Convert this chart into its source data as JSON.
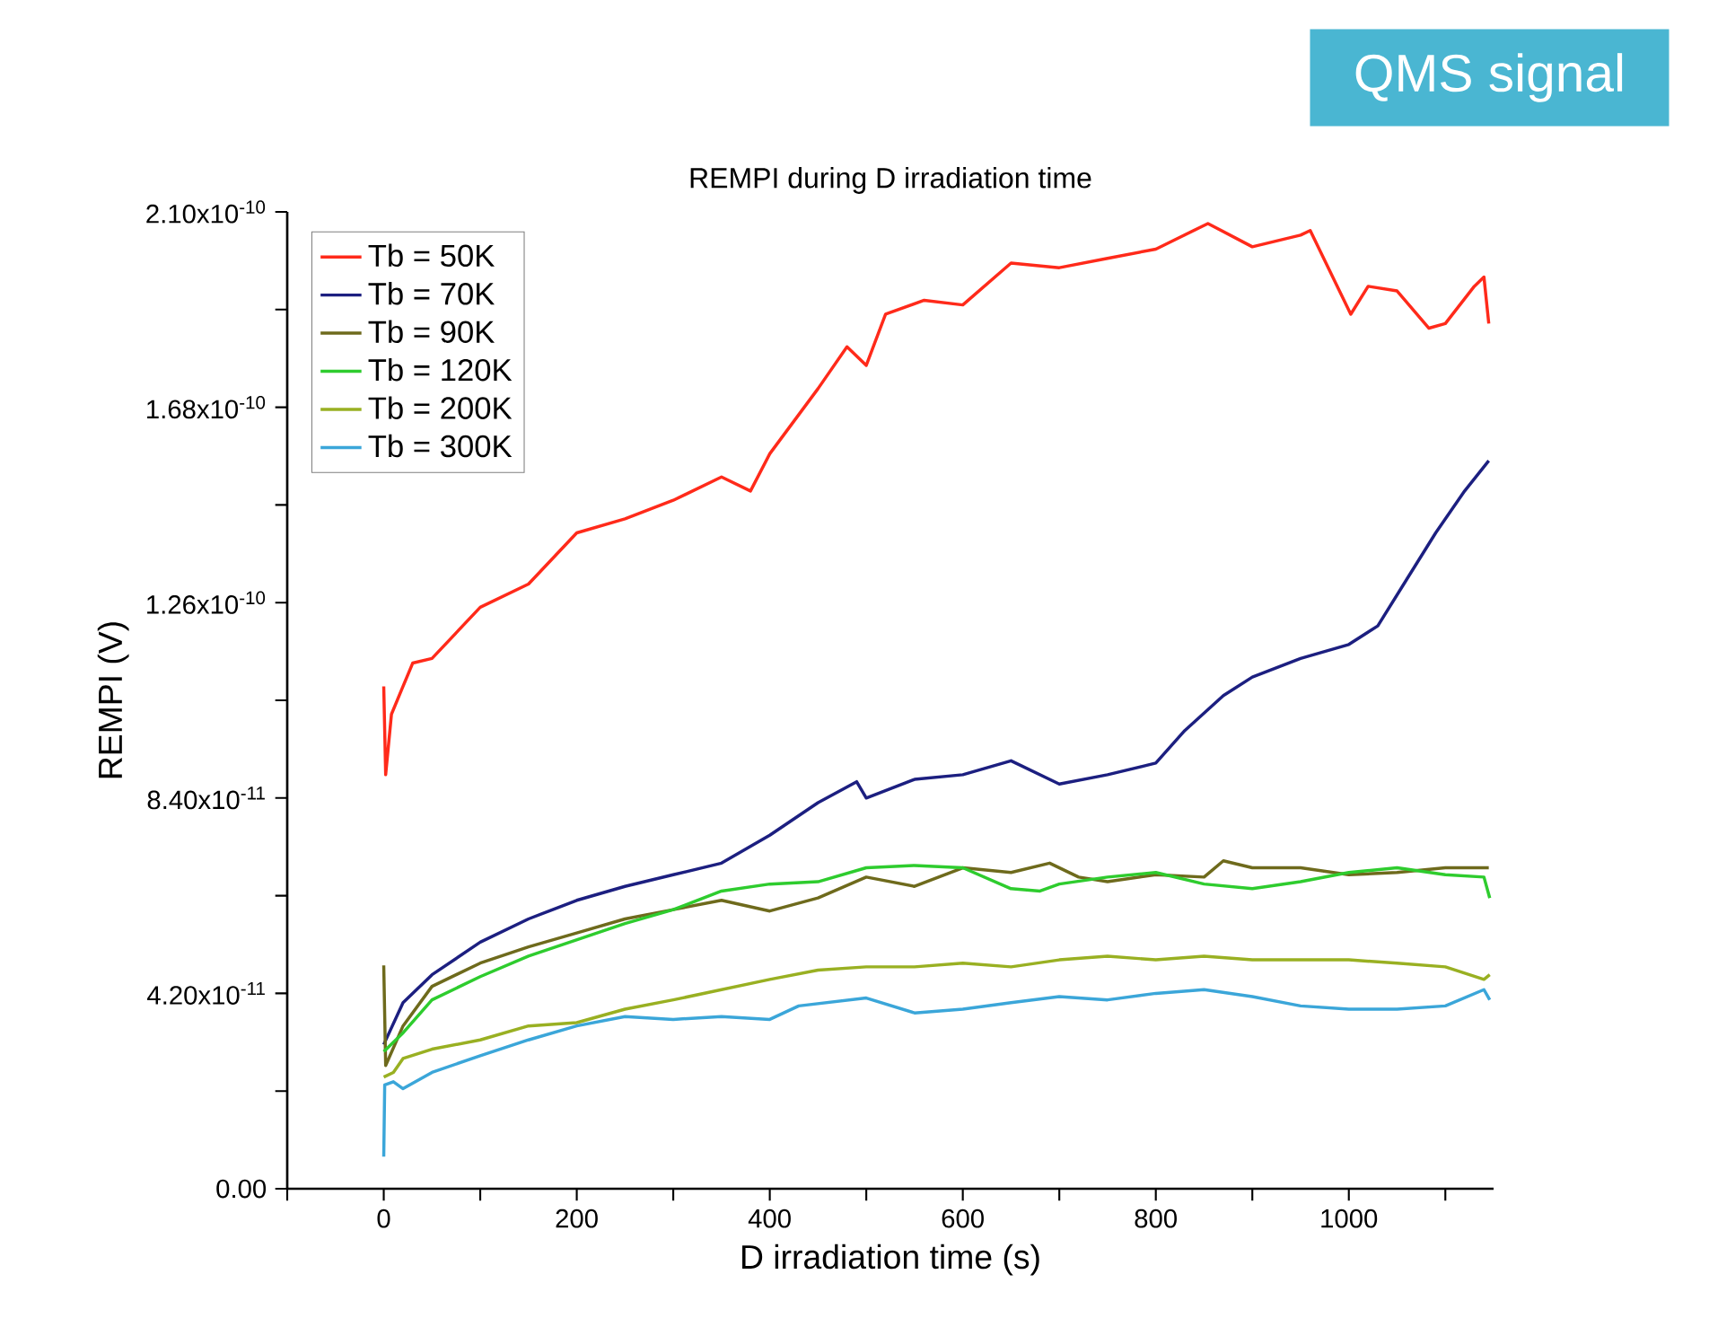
{
  "chart_data": {
    "type": "line",
    "title": "REMPI during D irradiation time",
    "xlabel": "D irradiation time (s)",
    "ylabel": "REMPI (V)",
    "annotations": [
      "QMS signal"
    ],
    "xlim": [
      -100,
      1150
    ],
    "ylim": [
      0,
      2.1e-10
    ],
    "xticks": [
      {
        "value": -100,
        "label": null
      },
      0,
      {
        "value": 100,
        "label": null
      },
      200,
      {
        "value": 300,
        "label": null
      },
      400,
      {
        "value": 500,
        "label": null
      },
      600,
      {
        "value": 700,
        "label": null
      },
      800,
      {
        "value": 900,
        "label": null
      },
      1000,
      {
        "value": 1100,
        "label": null
      }
    ],
    "yticks": [
      {
        "value": 0,
        "label": "0.00"
      },
      {
        "value": 2.1e-11,
        "label": null
      },
      {
        "value": 4.2e-11,
        "label": "4.20x10$^{-11}$"
      },
      {
        "value": 6.3e-11,
        "label": null
      },
      {
        "value": 8.4e-11,
        "label": "8.40x10$^{-11}$"
      },
      {
        "value": 1.05e-10,
        "label": null
      },
      {
        "value": 1.26e-10,
        "label": "1.26x10$^{-10}$"
      },
      {
        "value": 1.47e-10,
        "label": null
      },
      {
        "value": 1.68e-10,
        "label": "1.68x10$^{-10}$"
      },
      {
        "value": 1.89e-10,
        "label": null
      },
      {
        "value": 2.1e-10,
        "label": "2.10x10$^{-10}$"
      }
    ],
    "legend": "top left",
    "series": [
      {
        "name": "Tb = 50K",
        "color": "#ff2a1a",
        "x": [
          0,
          2,
          8,
          20,
          30,
          50,
          100,
          150,
          200,
          250,
          300,
          350,
          380,
          400,
          450,
          480,
          500,
          520,
          560,
          600,
          650,
          700,
          750,
          800,
          854,
          900,
          950,
          960,
          1002,
          1020,
          1050,
          1083,
          1100,
          1130,
          1140,
          1145
        ],
        "values": [
          1.08e-10,
          8.9e-11,
          1.02e-10,
          1.08e-10,
          1.13e-10,
          1.14e-10,
          1.25e-10,
          1.3e-10,
          1.41e-10,
          1.44e-10,
          1.48e-10,
          1.53e-10,
          1.5e-10,
          1.58e-10,
          1.72e-10,
          1.81e-10,
          1.77e-10,
          1.88e-10,
          1.91e-10,
          1.9e-10,
          1.99e-10,
          1.98e-10,
          2e-10,
          2.02e-10,
          2.075e-10,
          2.025e-10,
          2.05e-10,
          2.06e-10,
          1.88e-10,
          1.94e-10,
          1.93e-10,
          1.85e-10,
          1.86e-10,
          1.94e-10,
          1.96e-10,
          1.86e-10
        ]
      },
      {
        "name": "Tb = 70K",
        "color": "#1c1f80",
        "x": [
          0,
          20,
          50,
          100,
          150,
          200,
          250,
          300,
          350,
          400,
          450,
          490,
          500,
          550,
          600,
          650,
          700,
          750,
          800,
          830,
          870,
          900,
          950,
          1000,
          1030,
          1060,
          1090,
          1120,
          1145
        ],
        "values": [
          3.1e-11,
          4e-11,
          4.6e-11,
          5.3e-11,
          5.8e-11,
          6.2e-11,
          6.5e-11,
          6.75e-11,
          7e-11,
          7.6e-11,
          8.3e-11,
          8.75e-11,
          8.4e-11,
          8.8e-11,
          8.9e-11,
          9.2e-11,
          8.7e-11,
          8.9e-11,
          9.15e-11,
          9.85e-11,
          1.06e-10,
          1.1e-10,
          1.14e-10,
          1.17e-10,
          1.21e-10,
          1.31e-10,
          1.41e-10,
          1.5e-10,
          1.565e-10
        ]
      },
      {
        "name": "Tb = 90K",
        "color": "#6e6a1c",
        "x": [
          0,
          2,
          20,
          50,
          100,
          150,
          200,
          250,
          300,
          350,
          400,
          450,
          500,
          550,
          600,
          650,
          690,
          720,
          750,
          800,
          850,
          870,
          900,
          950,
          1000,
          1050,
          1100,
          1145
        ],
        "values": [
          4.8e-11,
          2.65e-11,
          3.5e-11,
          4.35e-11,
          4.85e-11,
          5.2e-11,
          5.5e-11,
          5.8e-11,
          6e-11,
          6.2e-11,
          5.97e-11,
          6.25e-11,
          6.7e-11,
          6.5e-11,
          6.9e-11,
          6.8e-11,
          7e-11,
          6.7e-11,
          6.6e-11,
          6.75e-11,
          6.7e-11,
          7.05e-11,
          6.9e-11,
          6.9e-11,
          6.75e-11,
          6.8e-11,
          6.9e-11,
          6.9e-11
        ]
      },
      {
        "name": "Tb = 120K",
        "color": "#2ecc2e",
        "x": [
          0,
          20,
          50,
          100,
          150,
          200,
          250,
          300,
          350,
          400,
          450,
          500,
          550,
          600,
          650,
          680,
          700,
          750,
          800,
          850,
          900,
          950,
          1000,
          1050,
          1100,
          1140,
          1146
        ],
        "values": [
          2.95e-11,
          3.35e-11,
          4.06e-11,
          4.56e-11,
          5e-11,
          5.35e-11,
          5.7e-11,
          6e-11,
          6.4e-11,
          6.55e-11,
          6.6e-11,
          6.9e-11,
          6.95e-11,
          6.9e-11,
          6.45e-11,
          6.4e-11,
          6.55e-11,
          6.7e-11,
          6.8e-11,
          6.55e-11,
          6.45e-11,
          6.6e-11,
          6.8e-11,
          6.9e-11,
          6.75e-11,
          6.7e-11,
          6.25e-11
        ]
      },
      {
        "name": "Tb = 200K",
        "color": "#99b022",
        "x": [
          0,
          10,
          20,
          50,
          100,
          150,
          200,
          250,
          300,
          350,
          400,
          450,
          500,
          550,
          600,
          650,
          700,
          750,
          800,
          850,
          900,
          950,
          1000,
          1050,
          1100,
          1140,
          1146
        ],
        "values": [
          2.4e-11,
          2.5e-11,
          2.8e-11,
          3e-11,
          3.2e-11,
          3.5e-11,
          3.57e-11,
          3.86e-11,
          4.06e-11,
          4.28e-11,
          4.5e-11,
          4.7e-11,
          4.77e-11,
          4.77e-11,
          4.85e-11,
          4.77e-11,
          4.92e-11,
          5e-11,
          4.92e-11,
          5e-11,
          4.92e-11,
          4.92e-11,
          4.92e-11,
          4.85e-11,
          4.77e-11,
          4.5e-11,
          4.6e-11
        ]
      },
      {
        "name": "Tb = 300K",
        "color": "#3ba6d9",
        "x": [
          0,
          1,
          10,
          20,
          50,
          100,
          150,
          200,
          250,
          300,
          350,
          400,
          430,
          500,
          550,
          600,
          650,
          700,
          750,
          800,
          850,
          900,
          950,
          1000,
          1050,
          1100,
          1140,
          1146
        ],
        "values": [
          6.9e-12,
          2.23e-11,
          2.3e-11,
          2.15e-11,
          2.5e-11,
          2.86e-11,
          3.2e-11,
          3.5e-11,
          3.7e-11,
          3.64e-11,
          3.7e-11,
          3.64e-11,
          3.93e-11,
          4.1e-11,
          3.78e-11,
          3.86e-11,
          4e-11,
          4.13e-11,
          4.06e-11,
          4.2e-11,
          4.28e-11,
          4.13e-11,
          3.93e-11,
          3.86e-11,
          3.86e-11,
          3.93e-11,
          4.28e-11,
          4.06e-11
        ]
      }
    ]
  }
}
